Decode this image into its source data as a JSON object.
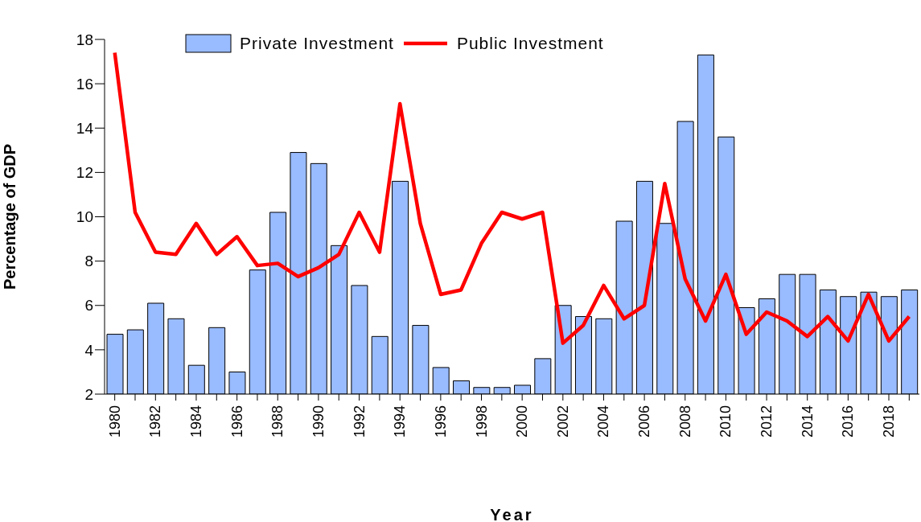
{
  "chart_data": {
    "type": "bar",
    "xlabel": "Year",
    "ylabel": "Percentage of GDP",
    "categories": [
      "1980",
      null,
      "1982",
      null,
      "1984",
      null,
      "1986",
      null,
      "1988",
      null,
      "1990",
      null,
      "1992",
      null,
      "1994",
      null,
      "1996",
      null,
      "1998",
      null,
      "2000",
      null,
      "2002",
      null,
      "2004",
      null,
      "2006",
      null,
      "2008",
      null,
      "2010",
      null,
      "2012",
      null,
      "2014",
      null,
      "2016",
      null,
      "2018",
      null
    ],
    "series": [
      {
        "name": "Private Investment",
        "color": "#99bbff",
        "values": [
          4.7,
          4.9,
          6.1,
          5.4,
          3.3,
          5.0,
          3.0,
          7.6,
          10.2,
          12.9,
          12.4,
          8.7,
          6.9,
          4.6,
          11.6,
          5.1,
          3.2,
          2.6,
          2.3,
          2.3,
          2.4,
          3.6,
          6.0,
          5.5,
          5.4,
          9.8,
          11.6,
          9.7,
          14.3,
          17.3,
          13.6,
          5.9,
          6.3,
          7.4,
          7.4,
          6.7,
          6.4,
          6.6,
          6.4,
          6.7
        ]
      },
      {
        "name": "Public Investment",
        "type": "line",
        "color": "#ff0000",
        "values": [
          17.4,
          10.2,
          8.4,
          8.3,
          9.7,
          8.3,
          9.1,
          7.8,
          7.9,
          7.3,
          7.7,
          8.3,
          10.2,
          8.4,
          15.1,
          9.7,
          6.5,
          6.7,
          8.8,
          10.2,
          9.9,
          10.2,
          4.3,
          5.1,
          6.9,
          5.4,
          6.0,
          11.5,
          7.2,
          5.3,
          7.4,
          4.7,
          5.7,
          5.3,
          4.6,
          5.5,
          4.4,
          6.5,
          4.4,
          5.5
        ]
      }
    ],
    "ylim": [
      2,
      18
    ],
    "yticks": [
      2,
      4,
      6,
      8,
      10,
      12,
      14,
      16,
      18
    ],
    "grid": false,
    "legend": "top",
    "marker": "none",
    "line_style": "solid"
  }
}
